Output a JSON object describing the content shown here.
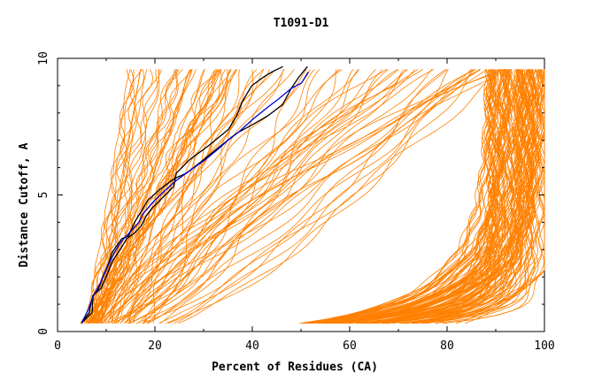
{
  "chart_data": {
    "type": "line",
    "title": "T1091-D1",
    "xlabel": "Percent of Residues (CA)",
    "ylabel": "Distance Cutoff, A",
    "xlim": [
      0,
      100
    ],
    "ylim": [
      0,
      10
    ],
    "x_ticks": [
      "0",
      "20",
      "40",
      "60",
      "80",
      "100"
    ],
    "y_ticks": [
      "0",
      "5",
      "10"
    ],
    "grid": false,
    "legend": "none",
    "colors": {
      "bulk": "#ff8000",
      "highlight_a": "#000000",
      "highlight_b": "#0000cc"
    },
    "highlight_series": [
      {
        "color": "#000000",
        "points": [
          [
            4.9,
            0.3
          ],
          [
            6.5,
            0.7
          ],
          [
            7.2,
            1.3
          ],
          [
            9.0,
            1.6
          ],
          [
            10.2,
            2.1
          ],
          [
            11.3,
            2.6
          ],
          [
            12.9,
            3.0
          ],
          [
            14.2,
            3.4
          ],
          [
            15.8,
            3.6
          ],
          [
            17.3,
            3.9
          ],
          [
            18.1,
            4.2
          ],
          [
            19.3,
            4.5
          ],
          [
            21.6,
            4.9
          ],
          [
            23.8,
            5.3
          ],
          [
            24.4,
            5.8
          ],
          [
            27.2,
            6.3
          ],
          [
            31.0,
            6.8
          ],
          [
            35.1,
            7.4
          ],
          [
            36.8,
            7.9
          ],
          [
            37.9,
            8.4
          ],
          [
            39.9,
            9.0
          ],
          [
            42.2,
            9.3
          ],
          [
            44.0,
            9.5
          ],
          [
            46.3,
            9.7
          ]
        ]
      },
      {
        "color": "#000000",
        "points": [
          [
            4.9,
            0.3
          ],
          [
            7.1,
            0.7
          ],
          [
            7.3,
            1.3
          ],
          [
            8.5,
            1.6
          ],
          [
            9.5,
            2.1
          ],
          [
            10.5,
            2.5
          ],
          [
            11.2,
            2.9
          ],
          [
            13.2,
            3.4
          ],
          [
            14.6,
            3.5
          ],
          [
            15.8,
            4.0
          ],
          [
            17.2,
            4.4
          ],
          [
            18.5,
            4.8
          ],
          [
            21.0,
            5.2
          ],
          [
            24.0,
            5.6
          ],
          [
            26.5,
            5.8
          ],
          [
            30.1,
            6.3
          ],
          [
            33.5,
            6.8
          ],
          [
            37.2,
            7.3
          ],
          [
            40.3,
            7.6
          ],
          [
            43.2,
            7.9
          ],
          [
            46.2,
            8.3
          ],
          [
            48.0,
            8.9
          ],
          [
            49.5,
            9.3
          ],
          [
            51.3,
            9.7
          ]
        ]
      },
      {
        "color": "#0000cc",
        "points": [
          [
            4.9,
            0.3
          ],
          [
            6.3,
            0.8
          ],
          [
            7.3,
            1.3
          ],
          [
            8.6,
            1.7
          ],
          [
            10.1,
            2.3
          ],
          [
            11.7,
            2.9
          ],
          [
            13.1,
            3.3
          ],
          [
            15.2,
            3.7
          ],
          [
            16.7,
            4.0
          ],
          [
            17.5,
            4.3
          ],
          [
            19.4,
            4.7
          ],
          [
            21.7,
            5.1
          ],
          [
            24.2,
            5.5
          ],
          [
            27.2,
            5.9
          ],
          [
            30.4,
            6.3
          ],
          [
            33.1,
            6.7
          ],
          [
            35.6,
            7.1
          ],
          [
            37.2,
            7.3
          ],
          [
            40.3,
            7.8
          ],
          [
            43.1,
            8.2
          ],
          [
            45.3,
            8.5
          ],
          [
            48.0,
            8.9
          ],
          [
            50.1,
            9.1
          ],
          [
            51.5,
            9.5
          ]
        ]
      }
    ]
  }
}
